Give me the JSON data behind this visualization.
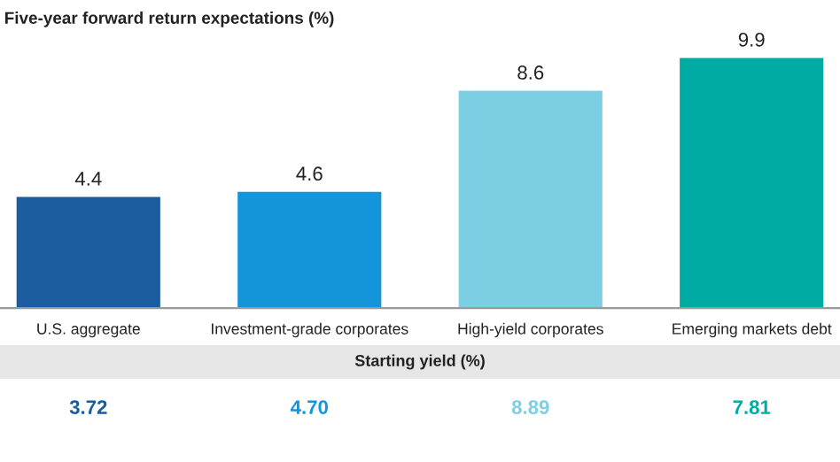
{
  "chart_data": {
    "type": "bar",
    "title": "Five-year forward return expectations (%)",
    "categories": [
      "U.S. aggregate",
      "Investment-grade corporates",
      "High-yield corporates",
      "Emerging markets debt"
    ],
    "values": [
      4.4,
      4.6,
      8.6,
      9.9
    ],
    "colors": [
      "#1b5c9e",
      "#1495da",
      "#7ccfe2",
      "#00aba4"
    ],
    "data_labels": true,
    "grid": false,
    "legend": false,
    "annotations": [
      "Starting yield (%)",
      "3.72",
      "4.70",
      "8.89",
      "7.81"
    ]
  }
}
